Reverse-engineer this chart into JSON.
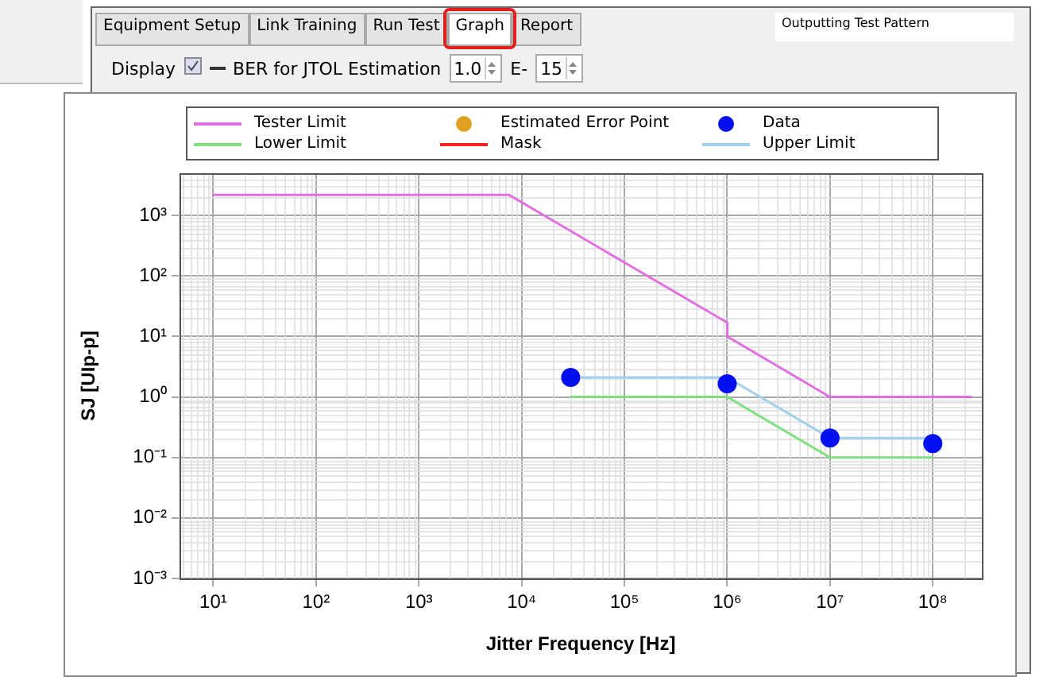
{
  "chart_data": {
    "type": "line",
    "xlabel": "Jitter Frequency [Hz]",
    "ylabel": "SJ [UIp-p]",
    "log": "xy",
    "grid": true,
    "legend": "top",
    "xlim": [
      4.7,
      300000000
    ],
    "ylim": [
      0.001,
      5000
    ],
    "xticks": [
      {
        "value": 10,
        "label": "10¹"
      },
      {
        "value": 100,
        "label": "10²"
      },
      {
        "value": 1000,
        "label": "10³"
      },
      {
        "value": 10000,
        "label": "10⁴"
      },
      {
        "value": 100000,
        "label": "10⁵"
      },
      {
        "value": 1000000,
        "label": "10⁶"
      },
      {
        "value": 10000000,
        "label": "10⁷"
      },
      {
        "value": 100000000,
        "label": "10⁸"
      }
    ],
    "yticks": [
      {
        "value": 0.001,
        "label": "10⁻³"
      },
      {
        "value": 0.01,
        "label": "10⁻²"
      },
      {
        "value": 0.1,
        "label": "10⁻¹"
      },
      {
        "value": 1,
        "label": "10⁰"
      },
      {
        "value": 10,
        "label": "10¹"
      },
      {
        "value": 100,
        "label": "10²"
      },
      {
        "value": 1000,
        "label": "10³"
      }
    ],
    "series": [
      {
        "name": "Tester Limit",
        "marker": "none",
        "color": "#e070e0",
        "x": [
          10,
          7500,
          1000000,
          1000000,
          10000000,
          240000000
        ],
        "values": [
          2200,
          2200,
          17,
          10,
          1,
          1
        ]
      },
      {
        "name": "Estimated Error Point",
        "type": "scatter",
        "marker": "circle",
        "color": "#e0a020"
      },
      {
        "name": "Data",
        "type": "scatter",
        "marker": "circle",
        "color": "#0010f0",
        "x": [
          30000,
          1000000,
          10000000,
          100000000
        ],
        "values": [
          2.1,
          1.65,
          0.21,
          0.17
        ]
      },
      {
        "name": "Lower Limit",
        "marker": "none",
        "color": "#80e080",
        "x": [
          30000,
          1000000,
          10000000,
          100000000
        ],
        "values": [
          1,
          1,
          0.1,
          0.1
        ]
      },
      {
        "name": "Mask",
        "marker": "none",
        "color": "#ff2020"
      },
      {
        "name": "Upper Limit",
        "marker": "none",
        "color": "#a0d0ec",
        "x": [
          30000,
          1000000,
          10000000,
          100000000
        ],
        "values": [
          2.1,
          2.1,
          0.21,
          0.21
        ]
      }
    ],
    "annotations": [
      "Equipment Setup",
      "Link Training",
      "Run Test",
      "Graph",
      "Report",
      "Outputting Test Pattern",
      "Display",
      "BER for JTOL Estimation",
      "1.0",
      "E-",
      "15"
    ]
  }
}
